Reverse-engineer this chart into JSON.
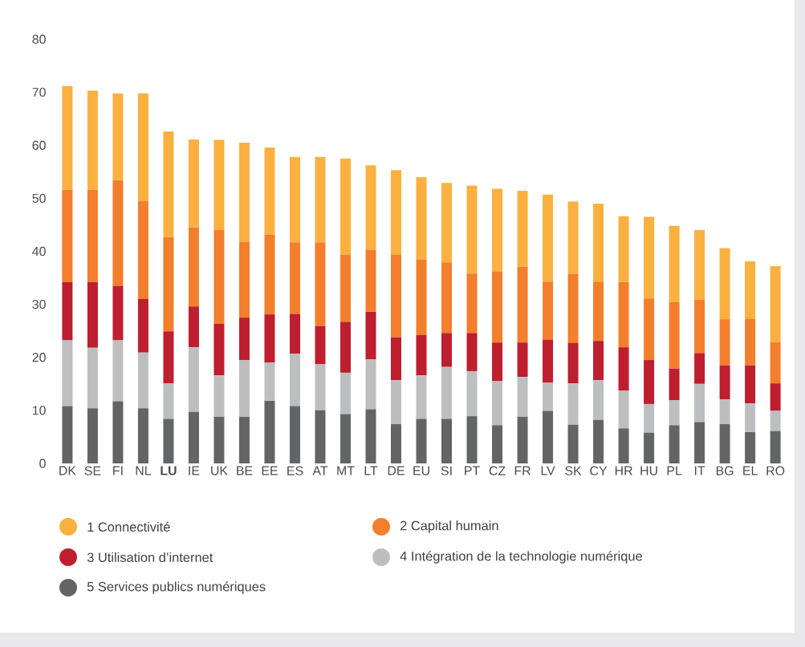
{
  "chart_data": {
    "type": "bar",
    "stacked": true,
    "legend": "bottom",
    "categories": [
      "DK",
      "SE",
      "FI",
      "NL",
      "**LU**",
      "IE",
      "UK",
      "BE",
      "EE",
      "ES",
      "AT",
      "MT",
      "LT",
      "DE",
      "EU",
      "SI",
      "PT",
      "CZ",
      "FR",
      "LV",
      "SK",
      "CY",
      "HR",
      "HU",
      "PL",
      "IT",
      "BG",
      "EL",
      "RO"
    ],
    "ylim": [
      0,
      80
    ],
    "yticks": [
      0,
      10,
      20,
      30,
      40,
      50,
      60,
      70,
      80
    ],
    "series": [
      {
        "name": "5 Services publics numériques",
        "color": "#636466",
        "values": [
          10.8,
          10.4,
          11.7,
          10.4,
          8.4,
          9.7,
          8.8,
          8.8,
          11.8,
          10.8,
          10.0,
          9.3,
          10.2,
          7.4,
          8.4,
          8.4,
          8.9,
          7.2,
          8.8,
          9.9,
          7.3,
          8.2,
          6.6,
          5.8,
          7.2,
          7.8,
          7.4,
          5.9,
          6.1
        ]
      },
      {
        "name": "4 Intégration de la technologie numérique",
        "color": "#bcbec0",
        "values": [
          12.4,
          11.4,
          11.5,
          10.5,
          6.7,
          12.2,
          7.8,
          10.7,
          7.2,
          9.9,
          8.7,
          7.8,
          9.4,
          8.3,
          8.2,
          9.8,
          8.5,
          8.3,
          7.5,
          5.3,
          7.8,
          7.5,
          7.1,
          5.4,
          4.7,
          7.2,
          4.7,
          5.4,
          3.8
        ]
      },
      {
        "name": "3 Utilisation d’internet",
        "color": "#be1e2d",
        "values": [
          11.0,
          12.4,
          10.3,
          10.1,
          9.8,
          7.7,
          9.7,
          8.0,
          9.1,
          7.5,
          7.2,
          9.6,
          9.0,
          8.1,
          7.6,
          6.4,
          7.2,
          7.3,
          6.5,
          8.1,
          7.6,
          7.4,
          8.2,
          8.3,
          6.0,
          5.8,
          6.4,
          7.2,
          5.2
        ]
      },
      {
        "name": "2 Capital humain",
        "color": "#f37e2c",
        "values": [
          17.4,
          17.4,
          19.9,
          18.5,
          17.8,
          14.9,
          17.7,
          14.3,
          15.0,
          13.5,
          15.8,
          12.7,
          11.7,
          15.5,
          14.3,
          13.3,
          11.2,
          13.4,
          14.3,
          11.0,
          13.0,
          11.2,
          12.3,
          11.6,
          12.5,
          10.1,
          8.7,
          8.8,
          7.8
        ]
      },
      {
        "name": "1 Connectivité",
        "color": "#fbb040",
        "values": [
          19.6,
          18.7,
          16.4,
          20.3,
          19.9,
          16.6,
          17.0,
          18.7,
          16.5,
          16.1,
          16.1,
          18.1,
          15.9,
          16.0,
          15.5,
          15.0,
          16.6,
          15.6,
          14.3,
          16.4,
          13.7,
          14.7,
          12.4,
          15.4,
          14.4,
          13.1,
          13.4,
          10.8,
          14.3
        ]
      }
    ]
  }
}
